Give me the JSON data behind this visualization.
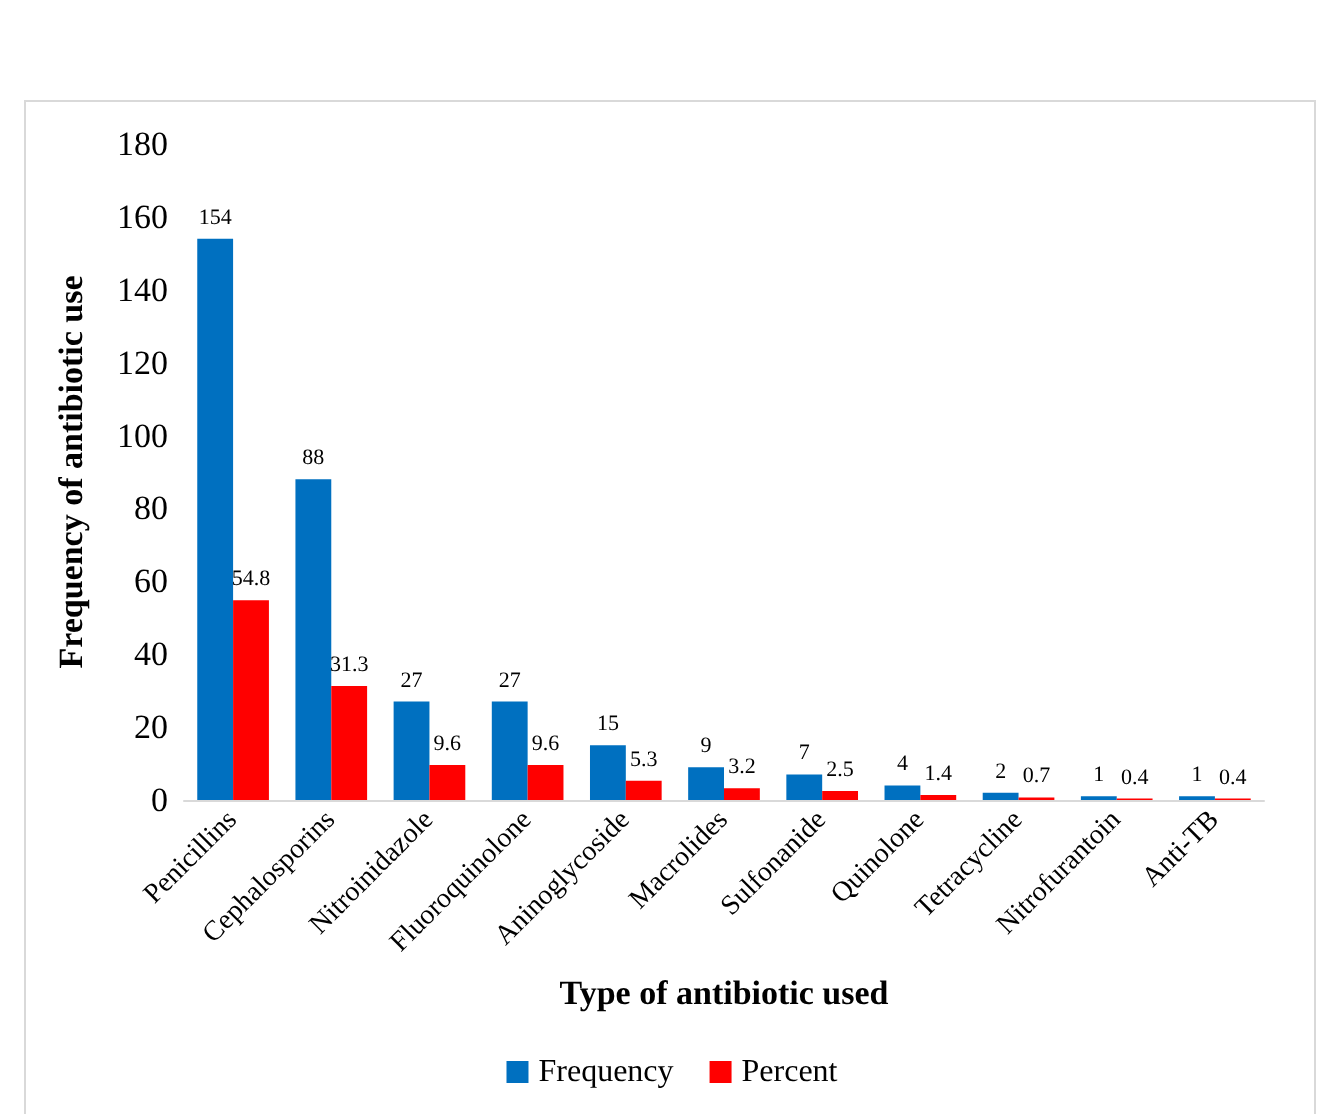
{
  "chart_data": {
    "type": "bar",
    "xlabel": "Type of antibiotic used",
    "ylabel": "Frequency of antibiotic use",
    "categories": [
      "Penicillins",
      "Cephalosporins",
      "Nitroinidazole",
      "Fluoroquinolone",
      "Aninoglycoside",
      "Macrolides",
      "Sulfonanide",
      "Quinolone",
      "Tetracycline",
      "Nitrofurantoin",
      "Anti-TB"
    ],
    "series": [
      {
        "name": "Frequency",
        "color": "#0070c0",
        "values": [
          154,
          88,
          27,
          27,
          15,
          9,
          7,
          4,
          2,
          1,
          1
        ]
      },
      {
        "name": "Percent",
        "color": "#ff0000",
        "values": [
          54.8,
          31.3,
          9.6,
          9.6,
          5.3,
          3.2,
          2.5,
          1.4,
          0.7,
          0.4,
          0.4
        ]
      }
    ],
    "ylim": [
      0,
      180
    ],
    "yticks": [
      0,
      20,
      40,
      60,
      80,
      100,
      120,
      140,
      160,
      180
    ],
    "grid": false,
    "legend": "bottom",
    "data_labels": true
  }
}
